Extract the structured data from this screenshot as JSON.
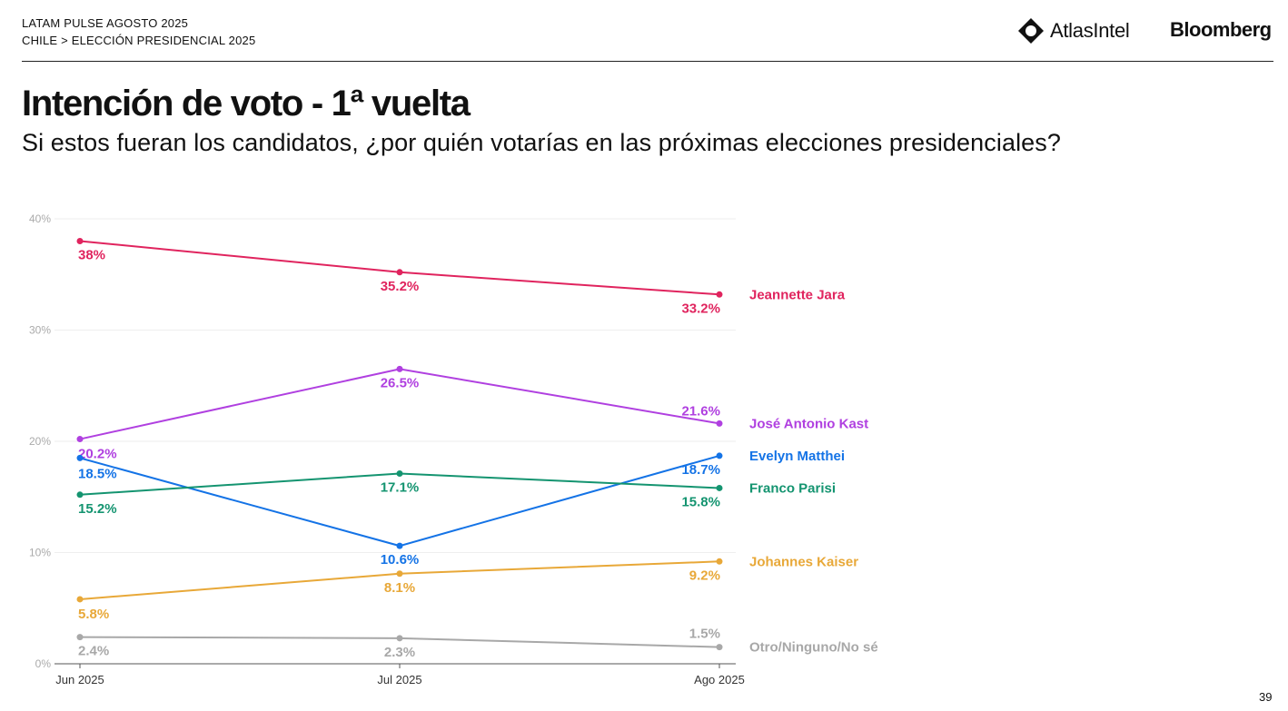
{
  "header": {
    "line1": "LATAM PULSE AGOSTO 2025",
    "line2": "CHILE > ELECCIÓN PRESIDENCIAL 2025",
    "brand_atlas": "AtlasIntel",
    "brand_bloomberg": "Bloomberg"
  },
  "title": "Intención de voto - 1ª vuelta",
  "subtitle": "Si estos fueran los candidatos, ¿por quién votarías en las próximas elecciones presidenciales?",
  "page_number": "39",
  "chart_data": {
    "type": "line",
    "title": "Intención de voto - 1ª vuelta",
    "xlabel": "",
    "ylabel": "",
    "ylim": [
      0,
      40
    ],
    "yticks": [
      0,
      10,
      20,
      30,
      40
    ],
    "ytick_labels": [
      "0%",
      "10%",
      "20%",
      "30%",
      "40%"
    ],
    "categories": [
      "Jun 2025",
      "Jul 2025",
      "Ago 2025"
    ],
    "series": [
      {
        "name": "Jeannette Jara",
        "color": "#e0245e",
        "values": [
          38,
          35.2,
          33.2
        ],
        "labels": [
          "38%",
          "35.2%",
          "33.2%"
        ]
      },
      {
        "name": "José Antonio Kast",
        "color": "#b040e0",
        "values": [
          20.2,
          26.5,
          21.6
        ],
        "labels": [
          "20.2%",
          "26.5%",
          "21.6%"
        ]
      },
      {
        "name": "Evelyn Matthei",
        "color": "#1473e6",
        "values": [
          18.5,
          10.6,
          18.7
        ],
        "labels": [
          "18.5%",
          "10.6%",
          "18.7%"
        ]
      },
      {
        "name": "Franco Parisi",
        "color": "#149470",
        "values": [
          15.2,
          17.1,
          15.8
        ],
        "labels": [
          "15.2%",
          "17.1%",
          "15.8%"
        ]
      },
      {
        "name": "Johannes Kaiser",
        "color": "#e8a838",
        "values": [
          5.8,
          8.1,
          9.2
        ],
        "labels": [
          "5.8%",
          "8.1%",
          "9.2%"
        ]
      },
      {
        "name": "Otro/Ninguno/No sé",
        "color": "#a8a8a8",
        "values": [
          2.4,
          2.3,
          1.5
        ],
        "labels": [
          "2.4%",
          "2.3%",
          "1.5%"
        ]
      }
    ]
  }
}
